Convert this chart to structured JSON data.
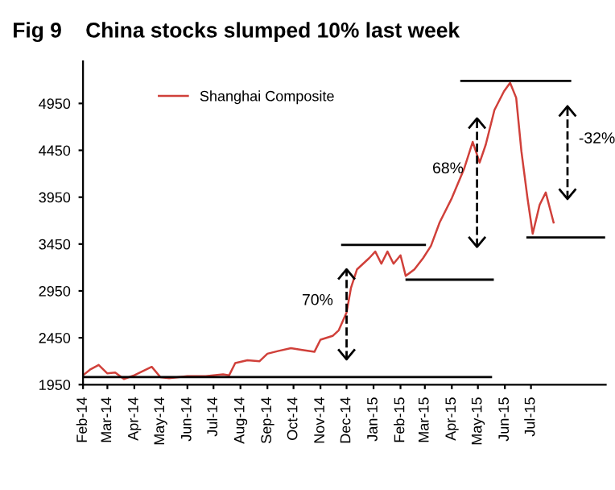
{
  "chart_data": {
    "type": "line",
    "title": "Fig 9    China stocks slumped 10% last week",
    "xlim": [
      "2014-02-01",
      "2015-09-25"
    ],
    "ylim": [
      1950,
      5400
    ],
    "yticks": [
      1950,
      2450,
      2950,
      3450,
      3950,
      4450,
      4950
    ],
    "xticks": [
      {
        "value": "2014-02-01",
        "label": "Feb-14"
      },
      {
        "value": "2014-03-01",
        "label": "Mar-14"
      },
      {
        "value": "2014-04-01",
        "label": "Apr-14"
      },
      {
        "value": "2014-05-01",
        "label": "May-14"
      },
      {
        "value": "2014-06-01",
        "label": "Jun-14"
      },
      {
        "value": "2014-07-01",
        "label": "Jul-14"
      },
      {
        "value": "2014-08-01",
        "label": "Aug-14"
      },
      {
        "value": "2014-09-01",
        "label": "Sep-14"
      },
      {
        "value": "2014-10-01",
        "label": "Oct-14"
      },
      {
        "value": "2014-11-01",
        "label": "Nov-14"
      },
      {
        "value": "2014-12-01",
        "label": "Dec-14"
      },
      {
        "value": "2015-01-01",
        "label": "Jan-15"
      },
      {
        "value": "2015-02-01",
        "label": "Feb-15"
      },
      {
        "value": "2015-03-01",
        "label": "Mar-15"
      },
      {
        "value": "2015-04-01",
        "label": "Apr-15"
      },
      {
        "value": "2015-05-01",
        "label": "May-15"
      },
      {
        "value": "2015-06-01",
        "label": "Jun-15"
      },
      {
        "value": "2015-07-01",
        "label": "Jul-15"
      }
    ],
    "legend": "top left",
    "grid": false,
    "series": [
      {
        "name": "Shanghai Composite",
        "color": "#d0403a",
        "x": [
          "2014-02-01",
          "2014-02-09",
          "2014-02-19",
          "2014-03-01",
          "2014-03-10",
          "2014-03-20",
          "2014-04-01",
          "2014-04-10",
          "2014-04-21",
          "2014-05-01",
          "2014-05-11",
          "2014-06-01",
          "2014-06-22",
          "2014-07-12",
          "2014-07-19",
          "2014-07-26",
          "2014-08-09",
          "2014-08-23",
          "2014-09-01",
          "2014-09-14",
          "2014-09-28",
          "2014-10-11",
          "2014-10-25",
          "2014-11-01",
          "2014-11-15",
          "2014-11-22",
          "2014-12-01",
          "2014-12-06",
          "2014-12-13",
          "2014-12-27",
          "2015-01-03",
          "2015-01-10",
          "2015-01-17",
          "2015-01-24",
          "2015-02-01",
          "2015-02-07",
          "2015-02-17",
          "2015-02-27",
          "2015-03-08",
          "2015-03-18",
          "2015-04-01",
          "2015-04-15",
          "2015-04-25",
          "2015-05-03",
          "2015-05-10",
          "2015-05-20",
          "2015-05-31",
          "2015-06-07",
          "2015-06-14",
          "2015-06-20",
          "2015-06-27",
          "2015-07-03",
          "2015-07-11",
          "2015-07-18",
          "2015-07-27"
        ],
        "values": [
          2050,
          2110,
          2160,
          2070,
          2080,
          2010,
          2050,
          2090,
          2140,
          2030,
          2020,
          2040,
          2040,
          2060,
          2050,
          2180,
          2210,
          2200,
          2280,
          2310,
          2340,
          2320,
          2300,
          2430,
          2470,
          2530,
          2720,
          2980,
          3180,
          3300,
          3370,
          3240,
          3370,
          3240,
          3330,
          3110,
          3180,
          3300,
          3430,
          3680,
          3940,
          4250,
          4540,
          4320,
          4510,
          4880,
          5080,
          5170,
          5010,
          4440,
          3940,
          3560,
          3870,
          4000,
          3680
        ]
      },
      {
        "type": "line",
        "color": "#000000",
        "line_style": "solid",
        "x": [
          "2014-02-01",
          "2015-05-16"
        ],
        "values": [
          2030,
          2030
        ]
      },
      {
        "type": "line",
        "color": "#000000",
        "line_style": "solid",
        "x": [
          "2014-11-26",
          "2015-03-01"
        ],
        "values": [
          3440,
          3440
        ]
      },
      {
        "type": "line",
        "color": "#000000",
        "line_style": "solid",
        "x": [
          "2015-02-08",
          "2015-05-18"
        ],
        "values": [
          3070,
          3070
        ]
      },
      {
        "type": "line",
        "color": "#000000",
        "line_style": "solid",
        "x": [
          "2015-04-12",
          "2015-08-15"
        ],
        "values": [
          5190,
          5190
        ]
      },
      {
        "type": "line",
        "color": "#000000",
        "line_style": "solid",
        "x": [
          "2015-06-27",
          "2015-09-23"
        ],
        "values": [
          3520,
          3520
        ]
      },
      {
        "type": "line",
        "color": "#000000",
        "line_style": "dashed",
        "x": [
          "2014-12-01",
          "2014-12-01"
        ],
        "values": [
          2220,
          3180
        ]
      },
      {
        "type": "line",
        "color": "#000000",
        "line_style": "dashed",
        "x": [
          "2015-04-30",
          "2015-04-30"
        ],
        "values": [
          3420,
          4790
        ]
      },
      {
        "type": "line",
        "color": "#000000",
        "line_style": "dashed",
        "x": [
          "2015-08-12",
          "2015-08-12"
        ],
        "values": [
          3930,
          4920
        ]
      }
    ],
    "annotations": [
      "70%",
      "68%",
      "-32%"
    ]
  }
}
